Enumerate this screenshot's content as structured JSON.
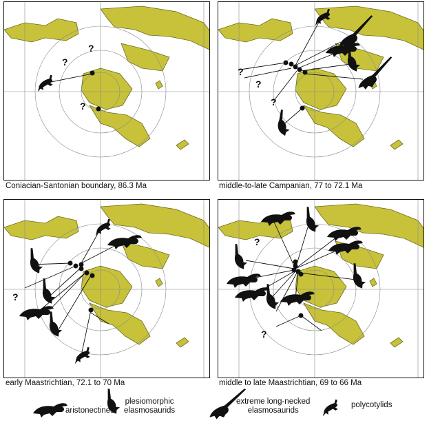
{
  "colors": {
    "land": "#c7c23a",
    "land_stroke": "#6b6a20",
    "ink": "#111111"
  },
  "panels": [
    {
      "caption": "Coniacian-Santonian boundary, 86.3 Ma"
    },
    {
      "caption": "middle-to-late Campanian, 77 to 72.1 Ma"
    },
    {
      "caption": "early Maastrichtian, 72.1 to 70 Ma"
    },
    {
      "caption": "middle to late Maastrichtian, 69 to 66 Ma"
    }
  ],
  "unknown_marker": "?",
  "legend": {
    "aristonectines": "aristonectines",
    "plesiomorphic": "plesiomorphic\nelasmosaurids",
    "extreme": "extreme long-necked\nelasmosaurids",
    "polycotylids": "polycotylids"
  }
}
